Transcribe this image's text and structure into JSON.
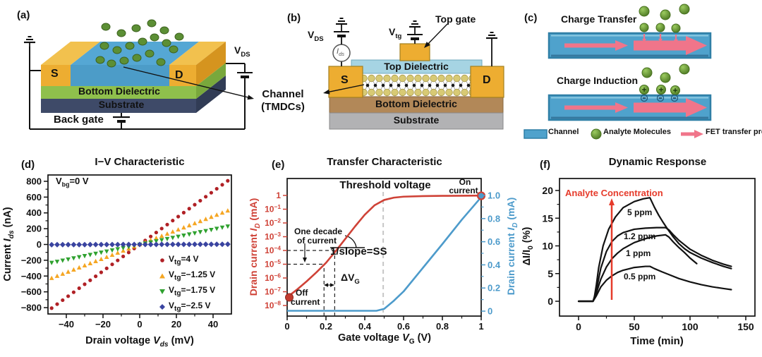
{
  "figure": {
    "panel_a": {
      "letter": "(a)",
      "vds": {
        "base": "V",
        "sub": "DS"
      },
      "source": "S",
      "drain": "D",
      "bottom_dielectric": "Bottom Dielectric",
      "substrate": "Substrate",
      "back_gate": "Back gate"
    },
    "channel_callout": {
      "line1": "Channel",
      "line2": "(TMDCs)"
    },
    "panel_b": {
      "letter": "(b)",
      "vds": {
        "base": "V",
        "sub": "DS"
      },
      "ids": {
        "base": "I",
        "sub": "ds"
      },
      "vtg": {
        "base": "V",
        "sub": "tg"
      },
      "top_gate": "Top gate",
      "top_dielectric": "Top Dielectric",
      "source": "S",
      "drain": "D",
      "bottom_dielectric": "Bottom Dielectric",
      "substrate": "Substrate"
    },
    "panel_c": {
      "letter": "(c)",
      "charge_transfer": "Charge Transfer",
      "charge_induction": "Charge Induction",
      "legend": {
        "channel": "Channel",
        "analyte": "Analyte Molecules",
        "fet": "FET transfer process"
      }
    },
    "colors": {
      "gold": "#EDAD31",
      "gold_top": "#F2C14E",
      "gold_side": "#D5941F",
      "channel_blue": "#55A7D4",
      "channel_front": "#4C9CC8",
      "dielectric_green": "#8FC04C",
      "green_side": "#79A83C",
      "substrate_navy": "#3E4A68",
      "navy_side": "#313C55",
      "top_dielectric": "#A6D4E3",
      "bottom_dielectric_brown": "#B28858",
      "substrate_gray": "#B2B2B4",
      "lattice_yellow": "#D8CA74",
      "molecule_green": "#5C8F35",
      "arrow_pink": "#F0758A",
      "wire": "#111111",
      "bar_border": "#2F7FA6"
    }
  },
  "chart_data": [
    {
      "id": "iv",
      "panel_letter": "(d)",
      "type": "scatter",
      "title": "I−V Characteristic",
      "xlabel": "Drain voltage V_ds (mV)",
      "ylabel": "Current I_ds (nA)",
      "xlabel_parts": [
        {
          "t": "Drain voltage "
        },
        {
          "t": "V",
          "i": true
        },
        {
          "t": "ds",
          "i": true,
          "sub": true
        },
        {
          "t": " (mV)"
        }
      ],
      "ylabel_parts": [
        {
          "t": "Current "
        },
        {
          "t": "I",
          "i": true
        },
        {
          "t": "ds",
          "i": true,
          "sub": true
        },
        {
          "t": " (nA)"
        }
      ],
      "xlim": [
        -50,
        50
      ],
      "ylim": [
        -889,
        889
      ],
      "xticks": [
        -40,
        -20,
        0,
        20,
        40
      ],
      "xticks_minor": [
        -30,
        -10,
        10,
        30
      ],
      "yticks": [
        -800,
        -600,
        -400,
        -200,
        0,
        200,
        400,
        600,
        800
      ],
      "yticks_minor": [
        -700,
        -500,
        -300,
        -100,
        100,
        300,
        500,
        700
      ],
      "annotation": {
        "base": "V",
        "sub": "bg",
        "post": "=0 V"
      },
      "x_sample": {
        "min": -48,
        "max": 48,
        "step": 3
      },
      "series": [
        {
          "label": {
            "base": "V",
            "sub": "tg",
            "post": "=4 V"
          },
          "marker": "circle",
          "color": "#B02025",
          "slope_nA_per_mV": 16.8
        },
        {
          "label": {
            "base": "V",
            "sub": "tg",
            "post": "=−1.25 V"
          },
          "marker": "triangle-up",
          "color": "#F5A623",
          "slope_nA_per_mV": 8.9
        },
        {
          "label": {
            "base": "V",
            "sub": "tg",
            "post": "=−1.75 V"
          },
          "marker": "triangle-down",
          "color": "#2FA12F",
          "slope_nA_per_mV": 4.8
        },
        {
          "label": {
            "base": "V",
            "sub": "tg",
            "post": "=−2.5 V"
          },
          "marker": "diamond",
          "color": "#3A44A0",
          "slope_nA_per_mV": 0.06
        }
      ]
    },
    {
      "id": "transfer",
      "panel_letter": "(e)",
      "type": "line",
      "title": "Transfer Characteristic",
      "xlabel": "Gate voltage V_G (V)",
      "ylabel_left": "Drain current I_D (mA)",
      "ylabel_right": "Drain current I_D (mA)",
      "xlabel_parts": [
        {
          "t": "Gate voltage "
        },
        {
          "t": "V",
          "i": true
        },
        {
          "t": "G",
          "sub": true
        },
        {
          "t": " (V)"
        }
      ],
      "ylabel_left_parts": [
        {
          "t": "Drain current "
        },
        {
          "t": "I",
          "i": true
        },
        {
          "t": "D",
          "i": true,
          "sub": true
        },
        {
          "t": " (mA)"
        }
      ],
      "ylabel_right_parts": [
        {
          "t": "Drain current "
        },
        {
          "t": "I",
          "i": true
        },
        {
          "t": "D",
          "i": true,
          "sub": true
        },
        {
          "t": " (mA)"
        }
      ],
      "colors": {
        "log_curve": "#CF4237",
        "linear_curve": "#4D9BCB",
        "threshold_line": "#C6C6C6"
      },
      "xlim": [
        0,
        1.0
      ],
      "xticks": [
        0,
        0.2,
        0.4,
        0.6,
        0.8,
        1.0
      ],
      "xticks_minor": [
        0.1,
        0.3,
        0.5,
        0.7,
        0.9
      ],
      "yticks_left": [
        "1",
        "10|−1",
        "10|−2",
        "10|−3",
        "10|−4",
        "10|−5",
        "10|−6",
        "10|−7",
        "10|−8"
      ],
      "ylim_left_log10": [
        -8,
        0
      ],
      "yticks_right": [
        "1.0",
        "0.8",
        "0.6",
        "0.4",
        "0.2",
        "0"
      ],
      "yticks_right_vals": [
        1.0,
        0.8,
        0.6,
        0.4,
        0.2,
        0
      ],
      "yticks_right_minor": [
        0.1,
        0.3,
        0.5,
        0.7,
        0.9
      ],
      "ylim_right": [
        0,
        1.0
      ],
      "log_curve_points": [
        [
          0,
          -7.4
        ],
        [
          0.05,
          -6.85
        ],
        [
          0.1,
          -6.25
        ],
        [
          0.15,
          -5.6
        ],
        [
          0.2,
          -4.9
        ],
        [
          0.25,
          -4.05
        ],
        [
          0.3,
          -3.15
        ],
        [
          0.35,
          -2.25
        ],
        [
          0.4,
          -1.4
        ],
        [
          0.45,
          -0.72
        ],
        [
          0.5,
          -0.33
        ],
        [
          0.55,
          -0.16
        ],
        [
          0.6,
          -0.09
        ],
        [
          0.7,
          -0.05
        ],
        [
          0.8,
          -0.03
        ],
        [
          0.9,
          -0.02
        ],
        [
          1.0,
          -0.01
        ]
      ],
      "linear_curve_points": [
        [
          0,
          0.003
        ],
        [
          0.46,
          0.003
        ],
        [
          0.5,
          0.02
        ],
        [
          0.55,
          0.09
        ],
        [
          0.6,
          0.17
        ],
        [
          0.7,
          0.375
        ],
        [
          0.8,
          0.58
        ],
        [
          0.9,
          0.79
        ],
        [
          1.0,
          0.985
        ]
      ],
      "threshold_x": 0.495,
      "guide_h_log": [
        -4,
        -5
      ],
      "guide_v_x": [
        0.19,
        0.245
      ],
      "annotations": {
        "threshold": "Threshold voltage",
        "on1": "On",
        "on2": "current",
        "off1": "Off",
        "off2": "current",
        "decade1": "One decade",
        "decade2": "of current",
        "ss": "1/slope=SS",
        "dvg": {
          "base": "ΔV",
          "sub": "G"
        }
      }
    },
    {
      "id": "dynamic",
      "panel_letter": "(f)",
      "type": "line",
      "title": "Dynamic Response",
      "xlabel": "Time (min)",
      "ylabel": "ΔI/I_0 (%)",
      "xlabel_parts": [
        {
          "t": "Time (min)"
        }
      ],
      "ylabel_parts": [
        {
          "t": "ΔI/I"
        },
        {
          "t": "0",
          "sub": true
        },
        {
          "t": " (%)"
        }
      ],
      "xlim": [
        -15,
        158
      ],
      "ylim": [
        -2.7,
        22.2
      ],
      "xticks": [
        0,
        50,
        100,
        150
      ],
      "xticks_minor": [
        25,
        75,
        125
      ],
      "yticks": [
        0,
        5,
        10,
        15,
        20
      ],
      "yticks_minor": [
        2.5,
        7.5,
        12.5,
        17.5
      ],
      "arrow_label": "Analyte Concentration",
      "arrow_color": "#E63B2B",
      "line_color": "#121212",
      "series": [
        {
          "label": "5 ppm",
          "points": [
            [
              0,
              0
            ],
            [
              13,
              0
            ],
            [
              14,
              0.5
            ],
            [
              16,
              3
            ],
            [
              18,
              6
            ],
            [
              22,
              10
            ],
            [
              27,
              13
            ],
            [
              33,
              15.2
            ],
            [
              40,
              16.9
            ],
            [
              50,
              18
            ],
            [
              58,
              18.5
            ],
            [
              64,
              18.7
            ],
            [
              68,
              17
            ],
            [
              72,
              15.5
            ],
            [
              76,
              14.2
            ],
            [
              80,
              13
            ],
            [
              85,
              11.6
            ],
            [
              90,
              10.4
            ],
            [
              95,
              9.5
            ],
            [
              100,
              8.8
            ],
            [
              110,
              7.8
            ],
            [
              120,
              7.0
            ],
            [
              130,
              6.3
            ],
            [
              137,
              5.9
            ]
          ]
        },
        {
          "label": "1.2 ppm",
          "points": [
            [
              0,
              0
            ],
            [
              13,
              0
            ],
            [
              16,
              2
            ],
            [
              20,
              6
            ],
            [
              25,
              9
            ],
            [
              30,
              10.8
            ],
            [
              35,
              11.8
            ],
            [
              40,
              12.4
            ],
            [
              50,
              13
            ],
            [
              60,
              13.2
            ],
            [
              70,
              13.3
            ],
            [
              78,
              13.3
            ],
            [
              81,
              12.9
            ],
            [
              85,
              12
            ],
            [
              90,
              11
            ],
            [
              95,
              10.2
            ],
            [
              100,
              9.4
            ],
            [
              110,
              8.3
            ],
            [
              120,
              7.4
            ],
            [
              130,
              6.7
            ],
            [
              137,
              6.3
            ]
          ]
        },
        {
          "label": "1 ppm",
          "points": [
            [
              0,
              0
            ],
            [
              13,
              0
            ],
            [
              16,
              1.5
            ],
            [
              20,
              4
            ],
            [
              25,
              6.2
            ],
            [
              30,
              7.7
            ],
            [
              35,
              8.7
            ],
            [
              40,
              9.5
            ],
            [
              50,
              10.6
            ],
            [
              60,
              11.3
            ],
            [
              70,
              11.8
            ],
            [
              78,
              12
            ],
            [
              81,
              11.6
            ],
            [
              85,
              10.7
            ],
            [
              90,
              9.7
            ],
            [
              95,
              8.8
            ],
            [
              100,
              7.8
            ],
            [
              106,
              6.8
            ]
          ]
        },
        {
          "label": "0.5 ppm",
          "points": [
            [
              0,
              0
            ],
            [
              13,
              0
            ],
            [
              16,
              1
            ],
            [
              20,
              2.6
            ],
            [
              25,
              3.8
            ],
            [
              30,
              4.6
            ],
            [
              35,
              5.2
            ],
            [
              40,
              5.6
            ],
            [
              50,
              6.1
            ],
            [
              60,
              6.3
            ],
            [
              64,
              6.3
            ],
            [
              68,
              5.9
            ],
            [
              75,
              5.3
            ],
            [
              80,
              4.9
            ],
            [
              90,
              4.1
            ],
            [
              100,
              3.5
            ],
            [
              110,
              3.0
            ],
            [
              120,
              2.6
            ],
            [
              130,
              2.3
            ],
            [
              137,
              2.1
            ]
          ]
        }
      ]
    }
  ]
}
